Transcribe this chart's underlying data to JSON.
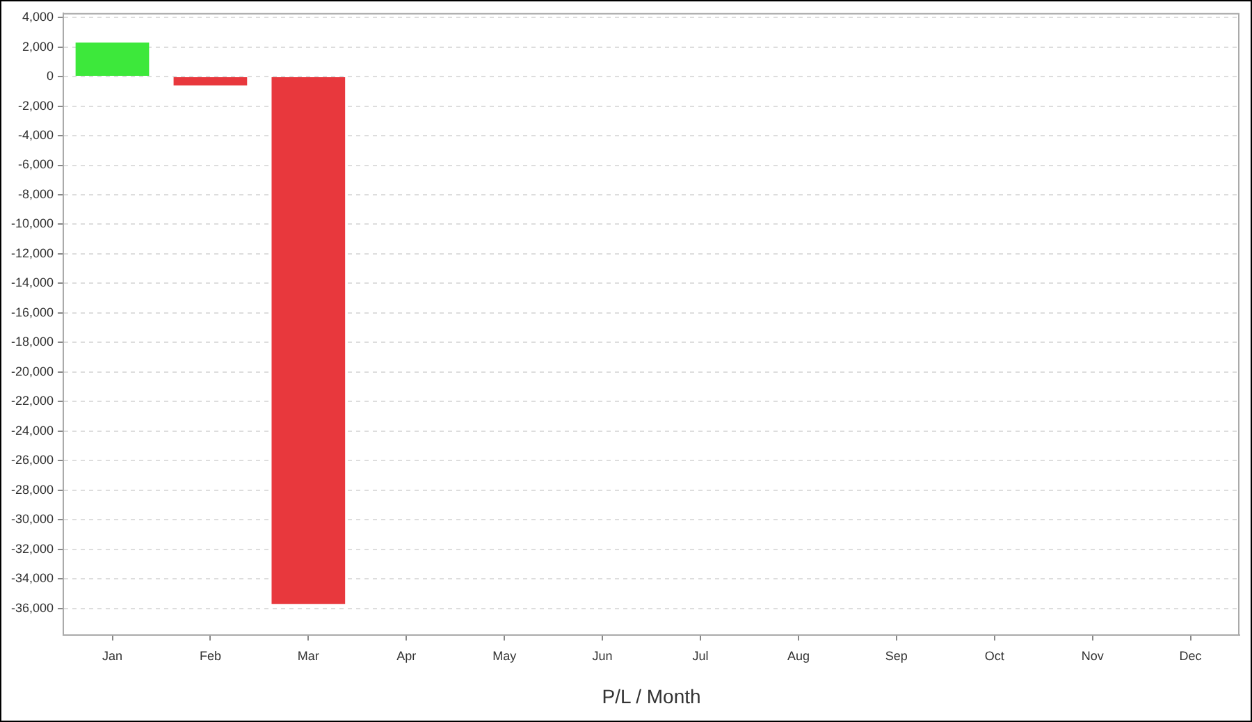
{
  "chart_data": {
    "type": "bar",
    "xlabel": "P/L / Month",
    "categories": [
      "Jan",
      "Feb",
      "Mar",
      "Apr",
      "May",
      "Jun",
      "Jul",
      "Aug",
      "Sep",
      "Oct",
      "Nov",
      "Dec"
    ],
    "values": [
      2300,
      -600,
      -35700,
      null,
      null,
      null,
      null,
      null,
      null,
      null,
      null,
      null
    ],
    "colors": [
      "#3de83b",
      "#e8383d",
      "#e8383d",
      "#e8383d",
      "#e8383d",
      "#e8383d",
      "#e8383d",
      "#e8383d",
      "#e8383d",
      "#e8383d",
      "#e8383d",
      "#e8383d"
    ],
    "ylim": [
      -37800,
      4300
    ],
    "yticks": [
      {
        "value": -36000,
        "label": "-36,000"
      },
      {
        "value": -34000,
        "label": "-34,000"
      },
      {
        "value": -32000,
        "label": "-32,000"
      },
      {
        "value": -30000,
        "label": "-30,000"
      },
      {
        "value": -28000,
        "label": "-28,000"
      },
      {
        "value": -26000,
        "label": "-26,000"
      },
      {
        "value": -24000,
        "label": "-24,000"
      },
      {
        "value": -22000,
        "label": "-22,000"
      },
      {
        "value": -20000,
        "label": "-20,000"
      },
      {
        "value": -18000,
        "label": "-18,000"
      },
      {
        "value": -16000,
        "label": "-16,000"
      },
      {
        "value": -14000,
        "label": "-14,000"
      },
      {
        "value": -12000,
        "label": "-12,000"
      },
      {
        "value": -10000,
        "label": "-10,000"
      },
      {
        "value": -8000,
        "label": "-8,000"
      },
      {
        "value": -6000,
        "label": "-6,000"
      },
      {
        "value": -4000,
        "label": "-4,000"
      },
      {
        "value": -2000,
        "label": "-2,000"
      },
      0,
      {
        "value": 2000,
        "label": "2,000"
      },
      {
        "value": 4000,
        "label": "4,000"
      }
    ],
    "grid": "y",
    "legend": false
  }
}
